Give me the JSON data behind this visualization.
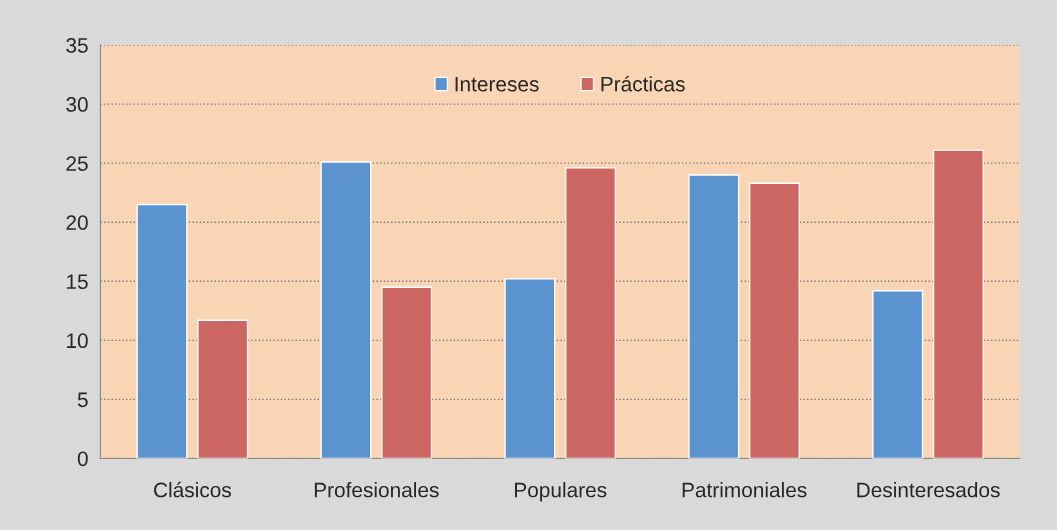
{
  "chart_data": {
    "type": "bar",
    "categories": [
      "Clásicos",
      "Profesionales",
      "Populares",
      "Patrimoniales",
      "Desinteresados"
    ],
    "series": [
      {
        "name": "Intereses",
        "color": "#5b93cf",
        "values": [
          21.5,
          25.1,
          15.2,
          24.0,
          14.2
        ]
      },
      {
        "name": "Prácticas",
        "color": "#cc6662",
        "values": [
          11.7,
          14.5,
          24.6,
          23.3,
          26.1
        ]
      }
    ],
    "ylim": [
      0,
      35
    ],
    "yticks": [
      0,
      5,
      10,
      15,
      20,
      25,
      30,
      35
    ],
    "grid": "y",
    "legend": "top"
  }
}
